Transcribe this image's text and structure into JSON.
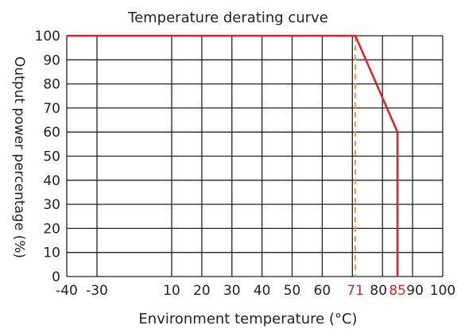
{
  "chart_data": {
    "type": "line",
    "title": "Temperature derating curve",
    "xlabel": "Environment temperature (°C)",
    "ylabel": "Output power percentage (%)",
    "xlim": [
      -40,
      100
    ],
    "ylim": [
      0,
      100
    ],
    "x_axis_scale": "piecewise: -40 to -30 then 10 to 100 (gap between -30 and 10)",
    "x_ticks": [
      {
        "value": -40,
        "label": "-40",
        "highlight": false
      },
      {
        "value": -30,
        "label": "-30",
        "highlight": false
      },
      {
        "value": 10,
        "label": "10",
        "highlight": false
      },
      {
        "value": 20,
        "label": "20",
        "highlight": false
      },
      {
        "value": 30,
        "label": "30",
        "highlight": false
      },
      {
        "value": 40,
        "label": "40",
        "highlight": false
      },
      {
        "value": 50,
        "label": "50",
        "highlight": false
      },
      {
        "value": 60,
        "label": "60",
        "highlight": false
      },
      {
        "value": 71,
        "label": "71",
        "highlight": true
      },
      {
        "value": 80,
        "label": "80",
        "highlight": false
      },
      {
        "value": 85,
        "label": "85",
        "highlight": true
      },
      {
        "value": 90,
        "label": "90",
        "highlight": false
      },
      {
        "value": 100,
        "label": "100",
        "highlight": false
      }
    ],
    "y_ticks": [
      0,
      10,
      20,
      30,
      40,
      50,
      60,
      70,
      80,
      90,
      100
    ],
    "grid_x_values": [
      -40,
      -30,
      10,
      20,
      30,
      40,
      50,
      60,
      70,
      80,
      90,
      100
    ],
    "grid_y_values": [
      0,
      10,
      20,
      30,
      40,
      50,
      60,
      70,
      80,
      90,
      100
    ],
    "grid": true,
    "series": [
      {
        "x": [
          -40,
          71,
          85,
          85
        ],
        "y": [
          100,
          100,
          60,
          0
        ],
        "color": "#e02020"
      }
    ],
    "reference_lines": [
      {
        "orientation": "vertical",
        "x": 71,
        "style": "dashed",
        "color": "#f0a030"
      }
    ],
    "colors": {
      "curve": "#e02020",
      "highlight_label": "#e02020",
      "reference": "#f0a030",
      "grid": "#222222",
      "text": "#222222"
    }
  }
}
